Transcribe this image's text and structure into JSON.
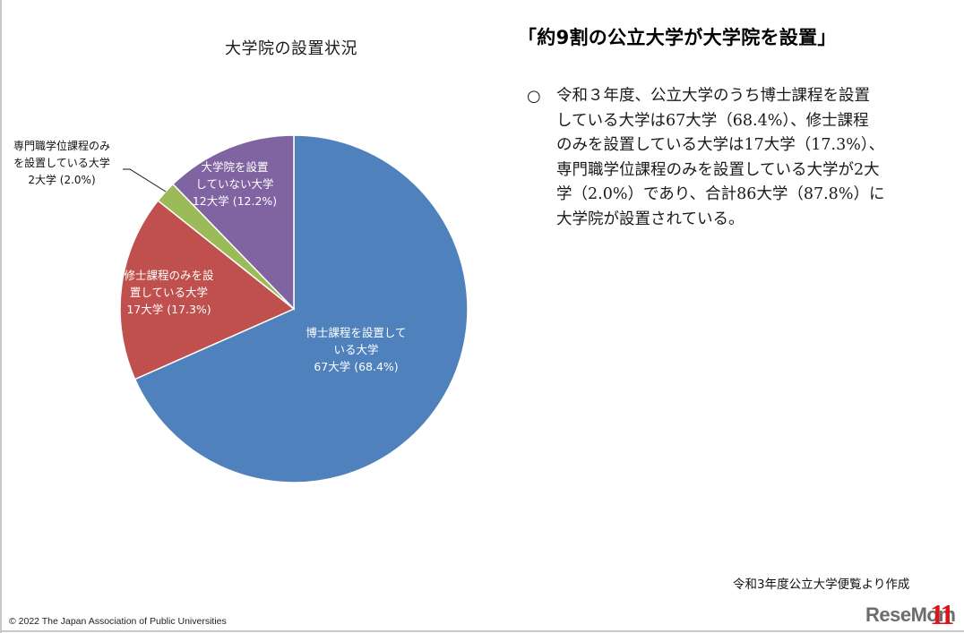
{
  "slide": {
    "chart_title": "大学院の設置状況",
    "headline": "「約9割の公立大学が大学院を設置」",
    "bullet": {
      "mark": "○",
      "lines": [
        "令和３年度、公立大学のうち博士課程を設置",
        "している大学は67大学（68.4%）、修士課程",
        "のみを設置している大学は17大学（17.3%）、",
        "専門職学位課程のみを設置している大学が2大",
        "学（2.0%）であり、合計86大学（87.8%）に",
        "大学院が設置されている。"
      ]
    },
    "source_note": "令和3年度公立大学便覧より作成",
    "copyright": "©  2022  The Japan Association of Public Universities",
    "logo": {
      "text": "ReseMom",
      "number": "11"
    }
  },
  "colors": {
    "doctoral": "#4f81bd",
    "masters_only": "#c0504d",
    "professional_only": "#9bbb59",
    "no_graduate": "#8064a2",
    "label_text": "#ffffff",
    "border": "#c8c8c8",
    "logo_red": "#d8141c"
  },
  "pie_labels": {
    "doctoral": [
      "博士課程を設置して",
      "いる大学",
      "67大学 (68.4%)"
    ],
    "masters_only": [
      "修士課程のみを設",
      "置している大学",
      "17大学 (17.3%)"
    ],
    "professional_only": [
      "専門職学位課程のみ",
      "を設置している大学",
      "2大学 (2.0%)"
    ],
    "no_graduate": [
      "大学院を設置",
      "していない大学",
      "12大学 (12.2%)"
    ]
  },
  "chart_data": {
    "type": "pie",
    "title": "大学院の設置状況",
    "categories": [
      "博士課程を設置している大学",
      "修士課程のみを設置している大学",
      "専門職学位課程のみを設置している大学",
      "大学院を設置していない大学"
    ],
    "values": [
      67,
      17,
      2,
      12
    ],
    "percentages": [
      68.4,
      17.3,
      2.0,
      12.2
    ],
    "unit": "大学",
    "start_angle": "12 o'clock, clockwise",
    "legend": "none (data labels on slices)",
    "colors": [
      "#4f81bd",
      "#c0504d",
      "#9bbb59",
      "#8064a2"
    ]
  }
}
